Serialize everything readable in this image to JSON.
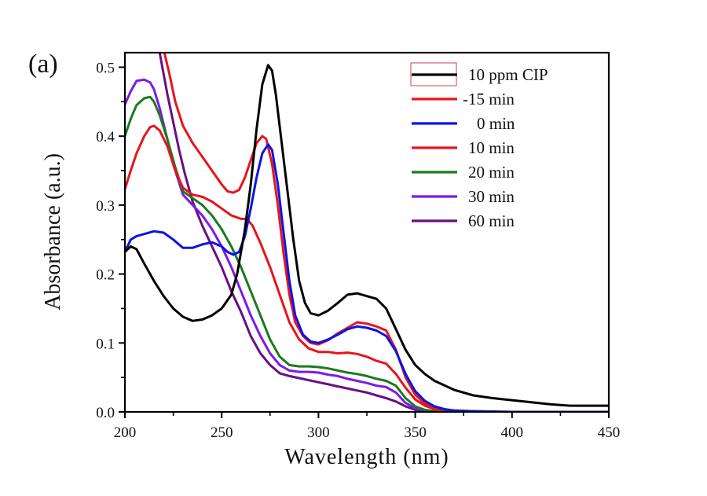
{
  "chart_data": {
    "type": "line",
    "panel_label": "(a)",
    "title": "",
    "xlabel": "Wavelength (nm)",
    "ylabel": "Absorbance (a.u.)",
    "xlim": [
      200,
      450
    ],
    "ylim": [
      0.0,
      0.52
    ],
    "xticks": [
      200,
      250,
      300,
      350,
      400,
      450
    ],
    "xtick_labels": [
      "200",
      "250",
      "300",
      "350",
      "400",
      "450"
    ],
    "xminor": [
      225,
      275,
      325,
      375,
      425
    ],
    "yticks": [
      0.0,
      0.1,
      0.2,
      0.3,
      0.4,
      0.5
    ],
    "ytick_labels": [
      "0.0",
      "0.1",
      "0.2",
      "0.3",
      "0.4",
      "0.5"
    ],
    "yminor": [
      0.05,
      0.15,
      0.25,
      0.35,
      0.45
    ],
    "grid": false,
    "legend_position": "top-right",
    "series": [
      {
        "name": "10 ppm CIP",
        "color": "#000000",
        "x": [
          200,
          203,
          206,
          210,
          215,
          220,
          225,
          230,
          235,
          240,
          245,
          250,
          255,
          258,
          262,
          265,
          268,
          271,
          274,
          276,
          278,
          281,
          284,
          287,
          290,
          293,
          296,
          300,
          305,
          310,
          315,
          320,
          325,
          330,
          335,
          340,
          345,
          350,
          355,
          360,
          370,
          380,
          390,
          400,
          410,
          420,
          430,
          440,
          450
        ],
        "y": [
          0.232,
          0.24,
          0.236,
          0.215,
          0.19,
          0.168,
          0.15,
          0.138,
          0.132,
          0.134,
          0.14,
          0.15,
          0.17,
          0.2,
          0.265,
          0.33,
          0.41,
          0.475,
          0.503,
          0.495,
          0.46,
          0.39,
          0.32,
          0.25,
          0.19,
          0.158,
          0.143,
          0.14,
          0.147,
          0.158,
          0.17,
          0.172,
          0.168,
          0.164,
          0.15,
          0.12,
          0.09,
          0.068,
          0.055,
          0.045,
          0.032,
          0.024,
          0.02,
          0.017,
          0.014,
          0.011,
          0.009,
          0.009,
          0.009
        ]
      },
      {
        "name": "-15 min",
        "color": "#e8141c",
        "x": [
          220.5,
          223,
          226,
          230,
          235,
          240,
          245,
          250,
          253,
          256,
          259,
          262,
          265,
          268,
          271,
          273,
          276,
          279,
          282,
          285,
          288,
          292,
          296,
          300,
          305,
          310,
          315,
          320,
          325,
          330,
          335,
          340,
          345,
          350,
          355,
          360,
          365,
          370,
          380,
          400,
          450
        ],
        "y": [
          0.52,
          0.49,
          0.45,
          0.415,
          0.39,
          0.37,
          0.35,
          0.33,
          0.32,
          0.318,
          0.322,
          0.34,
          0.365,
          0.39,
          0.4,
          0.396,
          0.36,
          0.3,
          0.23,
          0.17,
          0.13,
          0.11,
          0.1,
          0.098,
          0.104,
          0.114,
          0.122,
          0.13,
          0.128,
          0.124,
          0.118,
          0.09,
          0.05,
          0.025,
          0.012,
          0.006,
          0.003,
          0.002,
          0.001,
          0.0,
          0.0
        ]
      },
      {
        "name": "0 min",
        "color": "#0a14e6",
        "x": [
          200,
          203,
          206,
          210,
          215,
          220,
          225,
          230,
          235,
          240,
          245,
          250,
          253,
          256,
          259,
          262,
          265,
          268,
          271,
          274,
          276,
          279,
          282,
          285,
          288,
          292,
          296,
          300,
          305,
          310,
          315,
          320,
          325,
          330,
          335,
          340,
          345,
          350,
          355,
          360,
          365,
          370,
          380,
          400,
          450
        ],
        "y": [
          0.232,
          0.25,
          0.255,
          0.258,
          0.262,
          0.26,
          0.25,
          0.238,
          0.238,
          0.243,
          0.246,
          0.24,
          0.232,
          0.228,
          0.232,
          0.255,
          0.295,
          0.34,
          0.375,
          0.388,
          0.38,
          0.33,
          0.26,
          0.19,
          0.14,
          0.112,
          0.102,
          0.1,
          0.105,
          0.112,
          0.12,
          0.124,
          0.122,
          0.118,
          0.11,
          0.088,
          0.055,
          0.03,
          0.016,
          0.008,
          0.004,
          0.002,
          0.001,
          0.0,
          0.0
        ]
      },
      {
        "name": "10 min",
        "color": "#e8141c",
        "x": [
          200,
          203,
          206,
          210,
          213,
          215,
          218,
          222,
          226,
          230,
          235,
          240,
          245,
          250,
          255,
          260,
          263,
          266,
          270,
          275,
          280,
          285,
          290,
          295,
          300,
          305,
          310,
          315,
          320,
          325,
          330,
          335,
          340,
          345,
          350,
          355,
          360,
          365,
          370,
          380,
          400,
          450
        ],
        "y": [
          0.323,
          0.35,
          0.375,
          0.4,
          0.413,
          0.415,
          0.408,
          0.385,
          0.35,
          0.325,
          0.315,
          0.312,
          0.305,
          0.295,
          0.285,
          0.28,
          0.28,
          0.27,
          0.245,
          0.21,
          0.17,
          0.13,
          0.105,
          0.092,
          0.087,
          0.087,
          0.085,
          0.086,
          0.084,
          0.08,
          0.074,
          0.07,
          0.055,
          0.035,
          0.018,
          0.009,
          0.004,
          0.002,
          0.001,
          0.0,
          0.0,
          0.0
        ]
      },
      {
        "name": "20 min",
        "color": "#1b7a1f",
        "x": [
          200,
          203,
          206,
          210,
          213,
          215,
          218,
          222,
          226,
          230,
          235,
          240,
          245,
          250,
          255,
          260,
          265,
          270,
          275,
          280,
          285,
          290,
          295,
          300,
          305,
          310,
          315,
          320,
          325,
          330,
          335,
          340,
          345,
          350,
          355,
          360,
          370,
          400,
          450
        ],
        "y": [
          0.4,
          0.425,
          0.445,
          0.455,
          0.457,
          0.45,
          0.43,
          0.395,
          0.355,
          0.32,
          0.31,
          0.3,
          0.285,
          0.265,
          0.24,
          0.21,
          0.175,
          0.14,
          0.105,
          0.08,
          0.068,
          0.066,
          0.066,
          0.065,
          0.063,
          0.06,
          0.057,
          0.055,
          0.052,
          0.048,
          0.045,
          0.038,
          0.02,
          0.008,
          0.003,
          0.001,
          0.0,
          0.0,
          0.0
        ]
      },
      {
        "name": "30 min",
        "color": "#7a1be6",
        "x": [
          200,
          203,
          206,
          210,
          213,
          215,
          218,
          222,
          226,
          230,
          235,
          240,
          245,
          250,
          255,
          260,
          265,
          270,
          275,
          280,
          285,
          290,
          295,
          300,
          305,
          310,
          315,
          320,
          325,
          330,
          335,
          340,
          345,
          350,
          355,
          360,
          370,
          400,
          450
        ],
        "y": [
          0.446,
          0.465,
          0.48,
          0.482,
          0.478,
          0.468,
          0.44,
          0.395,
          0.35,
          0.315,
          0.3,
          0.285,
          0.265,
          0.24,
          0.21,
          0.175,
          0.14,
          0.11,
          0.085,
          0.068,
          0.06,
          0.058,
          0.058,
          0.057,
          0.054,
          0.052,
          0.048,
          0.045,
          0.042,
          0.038,
          0.036,
          0.028,
          0.013,
          0.005,
          0.002,
          0.001,
          0.0,
          0.0,
          0.0
        ]
      },
      {
        "name": "60 min",
        "color": "#6a0f82",
        "x": [
          218,
          220,
          222,
          225,
          228,
          231,
          235,
          240,
          245,
          250,
          255,
          260,
          265,
          270,
          275,
          280,
          285,
          290,
          295,
          300,
          305,
          310,
          315,
          320,
          325,
          330,
          335,
          340,
          345,
          350,
          355,
          360,
          370,
          400,
          450
        ],
        "y": [
          0.52,
          0.49,
          0.46,
          0.42,
          0.38,
          0.345,
          0.305,
          0.27,
          0.24,
          0.21,
          0.175,
          0.145,
          0.11,
          0.085,
          0.068,
          0.056,
          0.052,
          0.049,
          0.046,
          0.043,
          0.04,
          0.037,
          0.034,
          0.031,
          0.028,
          0.024,
          0.02,
          0.015,
          0.008,
          0.003,
          0.001,
          0.0,
          0.0,
          0.0,
          0.0
        ]
      }
    ]
  },
  "legend": {
    "highlight_box_color": "#d04040"
  }
}
